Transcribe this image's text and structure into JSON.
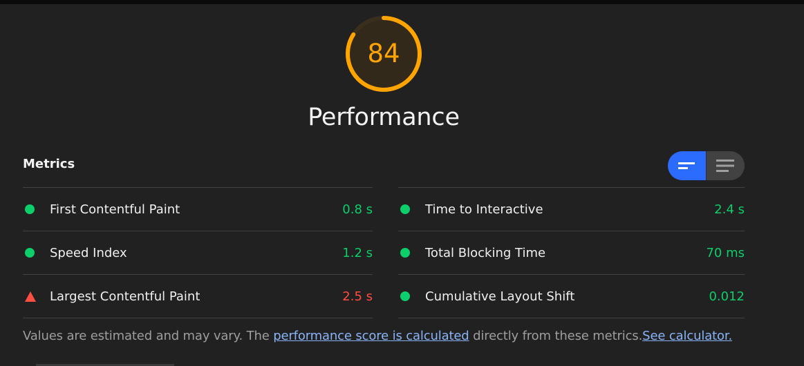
{
  "score": {
    "value": "84",
    "fraction": 0.84,
    "color": "#ffa400",
    "title": "Performance"
  },
  "metrics": {
    "title": "Metrics",
    "toggle": {
      "active": "compact-view-icon",
      "inactive": "expanded-view-icon",
      "active_color": "#2b6cff"
    },
    "left": [
      {
        "label": "First Contentful Paint",
        "value": "0.8 s",
        "status": "pass"
      },
      {
        "label": "Speed Index",
        "value": "1.2 s",
        "status": "pass"
      },
      {
        "label": "Largest Contentful Paint",
        "value": "2.5 s",
        "status": "fail"
      }
    ],
    "right": [
      {
        "label": "Time to Interactive",
        "value": "2.4 s",
        "status": "pass"
      },
      {
        "label": "Total Blocking Time",
        "value": "70 ms",
        "status": "pass"
      },
      {
        "label": "Cumulative Layout Shift",
        "value": "0.012",
        "status": "pass"
      }
    ]
  },
  "footer": {
    "text_1": "Values are estimated and may vary. The ",
    "link_1": "performance score is calculated",
    "text_2": " directly from these metrics.",
    "link_2": "See calculator."
  },
  "colors": {
    "pass": "#0cce6b",
    "fail": "#ff4e42",
    "average": "#ffa400",
    "link": "#8ab4f8"
  }
}
